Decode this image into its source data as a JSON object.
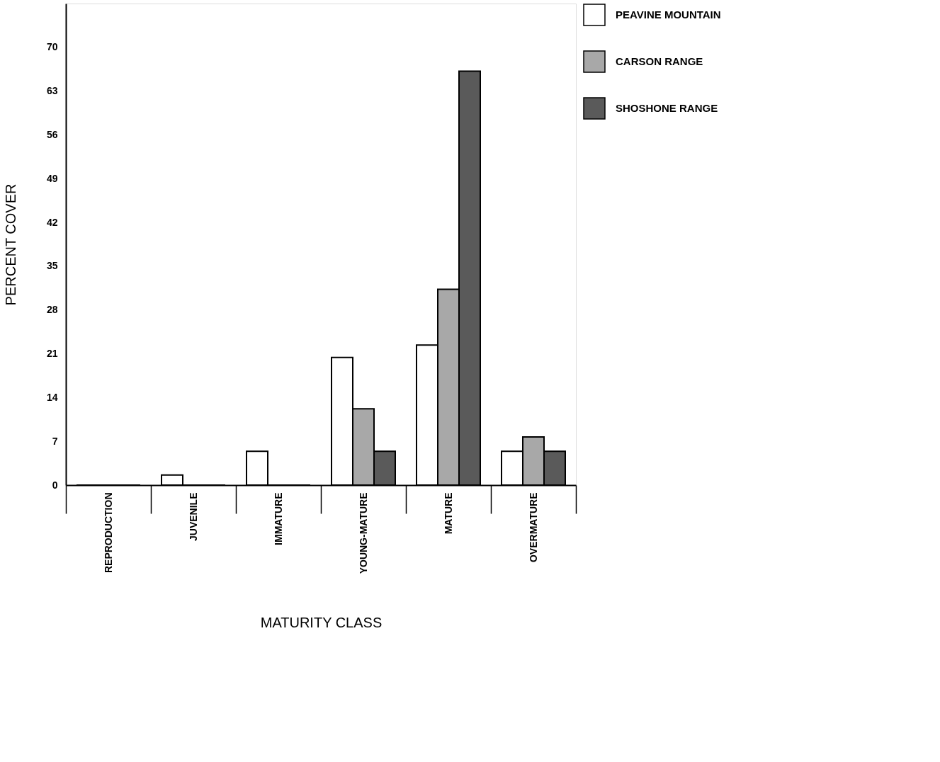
{
  "chart_data": {
    "type": "bar",
    "xlabel": "MATURITY CLASS",
    "ylabel": "PERCENT COVER",
    "categories": [
      "REPRODUCTION",
      "JUVENILE",
      "IMMATURE",
      "YOUNG-MATURE",
      "MATURE",
      "OVERMATURE"
    ],
    "series": [
      {
        "name": "PEAVINE  MOUNTAIN",
        "color": "#ffffff",
        "values": [
          0,
          1.6,
          5.4,
          20.4,
          22.4,
          5.4
        ]
      },
      {
        "name": "CARSON  RANGE",
        "color": "#a8a8a8",
        "values": [
          0,
          0,
          0,
          12.2,
          31.3,
          7.7
        ]
      },
      {
        "name": "SHOSHONE  RANGE",
        "color": "#5a5a5a",
        "values": [
          0,
          0,
          0,
          5.4,
          66.2,
          5.4
        ]
      }
    ],
    "ylim": [
      0,
      77
    ],
    "yticks": [
      0,
      7,
      14,
      21,
      28,
      35,
      42,
      49,
      56,
      63,
      70
    ],
    "grid": false,
    "legend": "right"
  }
}
